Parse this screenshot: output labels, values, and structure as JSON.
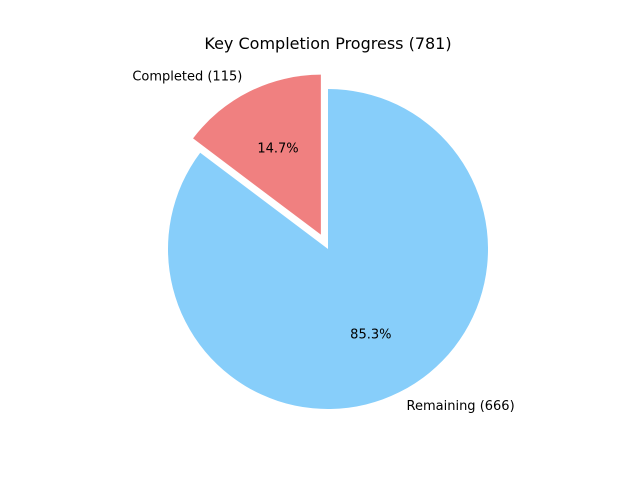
{
  "chart_data": {
    "type": "pie",
    "title": "Key Completion Progress (781)",
    "slices": [
      {
        "label": "Completed (115)",
        "value": 115,
        "pct_label": "14.7%",
        "color": "#f08080",
        "exploded": true
      },
      {
        "label": "Remaining (666)",
        "value": 666,
        "pct_label": "85.3%",
        "color": "#87cefa",
        "exploded": false
      }
    ],
    "start_angle_deg": 90,
    "direction": "counterclockwise",
    "legend": false
  }
}
